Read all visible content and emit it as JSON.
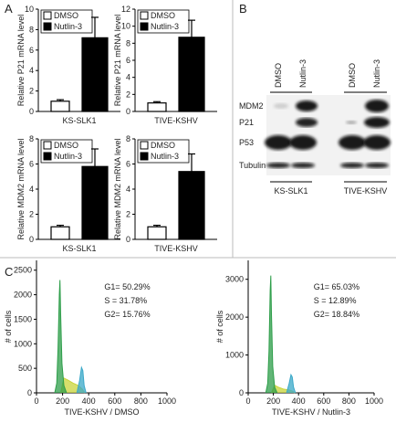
{
  "panel_labels": [
    "A",
    "B",
    "C"
  ],
  "chart_data": [
    {
      "type": "bar",
      "ylabel": "Relative P21 mRNA level",
      "xlabel": "KS-SLK1",
      "categories": [
        "DMSO",
        "Nutlin-3"
      ],
      "values": [
        1,
        7.2
      ],
      "errors": [
        0.15,
        2.0
      ],
      "colors": [
        "#ffffff",
        "#000000"
      ],
      "ylim": [
        0,
        10
      ],
      "yticks": [
        0,
        2,
        4,
        6,
        8,
        10
      ]
    },
    {
      "type": "bar",
      "ylabel": "Relative P21 mRNA level",
      "xlabel": "TIVE-KSHV",
      "categories": [
        "DMSO",
        "Nutlin-3"
      ],
      "values": [
        1,
        8.7
      ],
      "errors": [
        0.15,
        2.0
      ],
      "colors": [
        "#ffffff",
        "#000000"
      ],
      "ylim": [
        0,
        12
      ],
      "yticks": [
        0,
        2,
        4,
        6,
        8,
        10,
        12
      ]
    },
    {
      "type": "bar",
      "ylabel": "Relative MDM2 mRNA level",
      "xlabel": "KS-SLK1",
      "categories": [
        "DMSO",
        "Nutlin-3"
      ],
      "values": [
        1,
        5.8
      ],
      "errors": [
        0.12,
        1.4
      ],
      "colors": [
        "#ffffff",
        "#000000"
      ],
      "ylim": [
        0,
        8
      ],
      "yticks": [
        0,
        2,
        4,
        6,
        8
      ]
    },
    {
      "type": "bar",
      "ylabel": "Relative MDM2 mRNA level",
      "xlabel": "TIVE-KSHV",
      "categories": [
        "DMSO",
        "Nutlin-3"
      ],
      "values": [
        1,
        5.4
      ],
      "errors": [
        0.12,
        1.4
      ],
      "colors": [
        "#ffffff",
        "#000000"
      ],
      "ylim": [
        0,
        8
      ],
      "yticks": [
        0,
        2,
        4,
        6,
        8
      ]
    },
    {
      "type": "area",
      "xlabel": "TIVE-KSHV / DMSO",
      "ylabel": "# of cells",
      "annotations": [
        "G1= 50.29%",
        "S   = 31.78%",
        "G2= 15.76%"
      ],
      "xlim": [
        0,
        1000
      ],
      "xticks": [
        0,
        200,
        400,
        600,
        800,
        1000
      ],
      "ylim": [
        0,
        2700
      ],
      "yticks": [
        0,
        500,
        1000,
        1500,
        2000,
        2500
      ],
      "series": [
        {
          "color": "#c8d43a",
          "x": [
            185,
            210,
            240,
            280,
            320,
            350,
            370
          ],
          "values": [
            0,
            300,
            260,
            200,
            150,
            80,
            0
          ]
        },
        {
          "color": "#2e9e4a",
          "x": [
            140,
            155,
            165,
            175,
            180,
            185,
            195,
            210,
            230
          ],
          "values": [
            0,
            200,
            900,
            2000,
            2300,
            1600,
            600,
            150,
            0
          ]
        },
        {
          "color": "#3aa8c8",
          "x": [
            310,
            330,
            345,
            355,
            365,
            380
          ],
          "values": [
            0,
            250,
            520,
            450,
            150,
            0
          ]
        }
      ]
    },
    {
      "type": "area",
      "xlabel": "TIVE-KSHV / Nutlin-3",
      "ylabel": "# of cells",
      "annotations": [
        "G1= 65.03%",
        "S   = 12.89%",
        "G2= 18.84%"
      ],
      "xlim": [
        0,
        1000
      ],
      "xticks": [
        0,
        200,
        400,
        600,
        800,
        1000
      ],
      "ylim": [
        0,
        3500
      ],
      "yticks": [
        0,
        1000,
        2000,
        3000
      ],
      "series": [
        {
          "color": "#c8d43a",
          "x": [
            185,
            210,
            240,
            280,
            320,
            350,
            370
          ],
          "values": [
            0,
            200,
            150,
            100,
            80,
            50,
            0
          ]
        },
        {
          "color": "#2e9e4a",
          "x": [
            140,
            155,
            165,
            175,
            180,
            185,
            195,
            210,
            230
          ],
          "values": [
            0,
            250,
            1100,
            2700,
            3100,
            2100,
            700,
            150,
            0
          ]
        },
        {
          "color": "#3aa8c8",
          "x": [
            305,
            325,
            340,
            350,
            360,
            375
          ],
          "values": [
            0,
            250,
            480,
            420,
            150,
            0
          ]
        }
      ]
    }
  ],
  "blot": {
    "columns": [
      "DMSO",
      "Nutlin-3",
      "DMSO",
      "Nutlin-3"
    ],
    "rows": [
      "MDM2",
      "P21",
      "P53",
      "Tubulin"
    ],
    "groups": [
      "KS-SLK1",
      "TIVE-KSHV"
    ]
  }
}
